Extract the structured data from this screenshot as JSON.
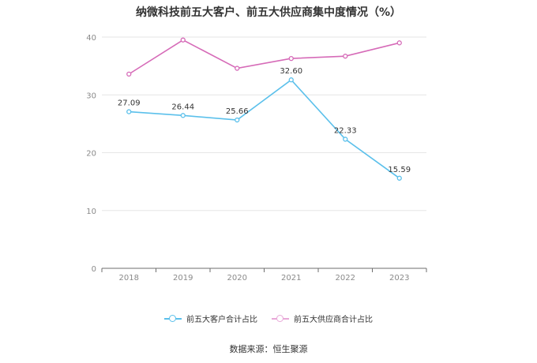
{
  "chart_data": {
    "type": "line",
    "title": "纳微科技前五大客户、前五大供应商集中度情况（%）",
    "x": [
      "2018",
      "2019",
      "2020",
      "2021",
      "2022",
      "2023"
    ],
    "y_ticks": [
      "0",
      "10",
      "20",
      "30",
      "40"
    ],
    "ylim": [
      0,
      40
    ],
    "grid": true,
    "legend_position": "bottom",
    "series": [
      {
        "name": "前五大客户合计占比",
        "color": "#5bc0eb",
        "values": [
          27.09,
          26.44,
          25.66,
          32.6,
          22.33,
          15.59
        ],
        "labels": [
          "27.09",
          "26.44",
          "25.66",
          "32.60",
          "22.33",
          "15.59"
        ]
      },
      {
        "name": "前五大供应商合计占比",
        "color": "#d66bb8",
        "values": [
          33.6,
          39.5,
          34.6,
          36.3,
          36.7,
          39.0
        ],
        "labels": []
      }
    ]
  },
  "footer": {
    "source": "数据来源：恒生聚源"
  }
}
